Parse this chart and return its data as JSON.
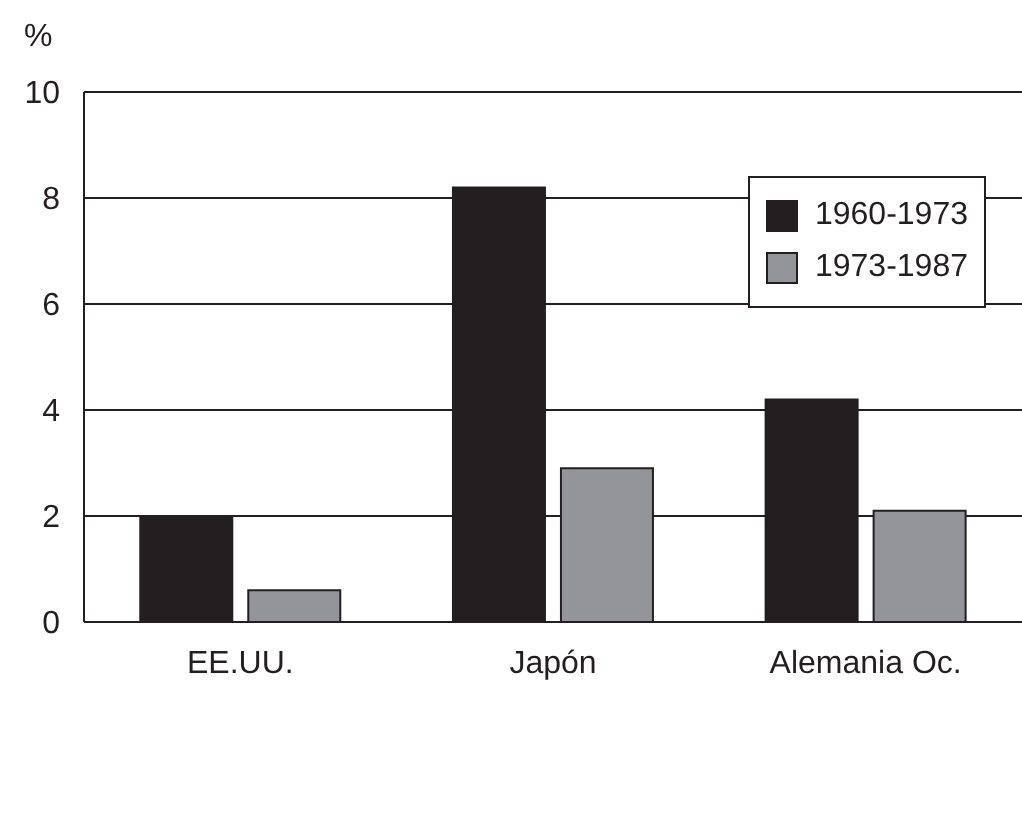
{
  "chart_data": {
    "type": "bar",
    "ylabel": "%",
    "categories": [
      "EE.UU.",
      "Japón",
      "Alemania Oc."
    ],
    "series": [
      {
        "name": "1960-1973",
        "color": "#231f20",
        "values": [
          2.0,
          8.2,
          4.2
        ]
      },
      {
        "name": "1973-1987",
        "color": "#939598",
        "values": [
          0.6,
          2.9,
          2.1
        ]
      }
    ],
    "ylim": [
      0,
      10
    ],
    "yticks": [
      0,
      2,
      4,
      6,
      8,
      10
    ],
    "grid": "y",
    "legend": "top right"
  }
}
